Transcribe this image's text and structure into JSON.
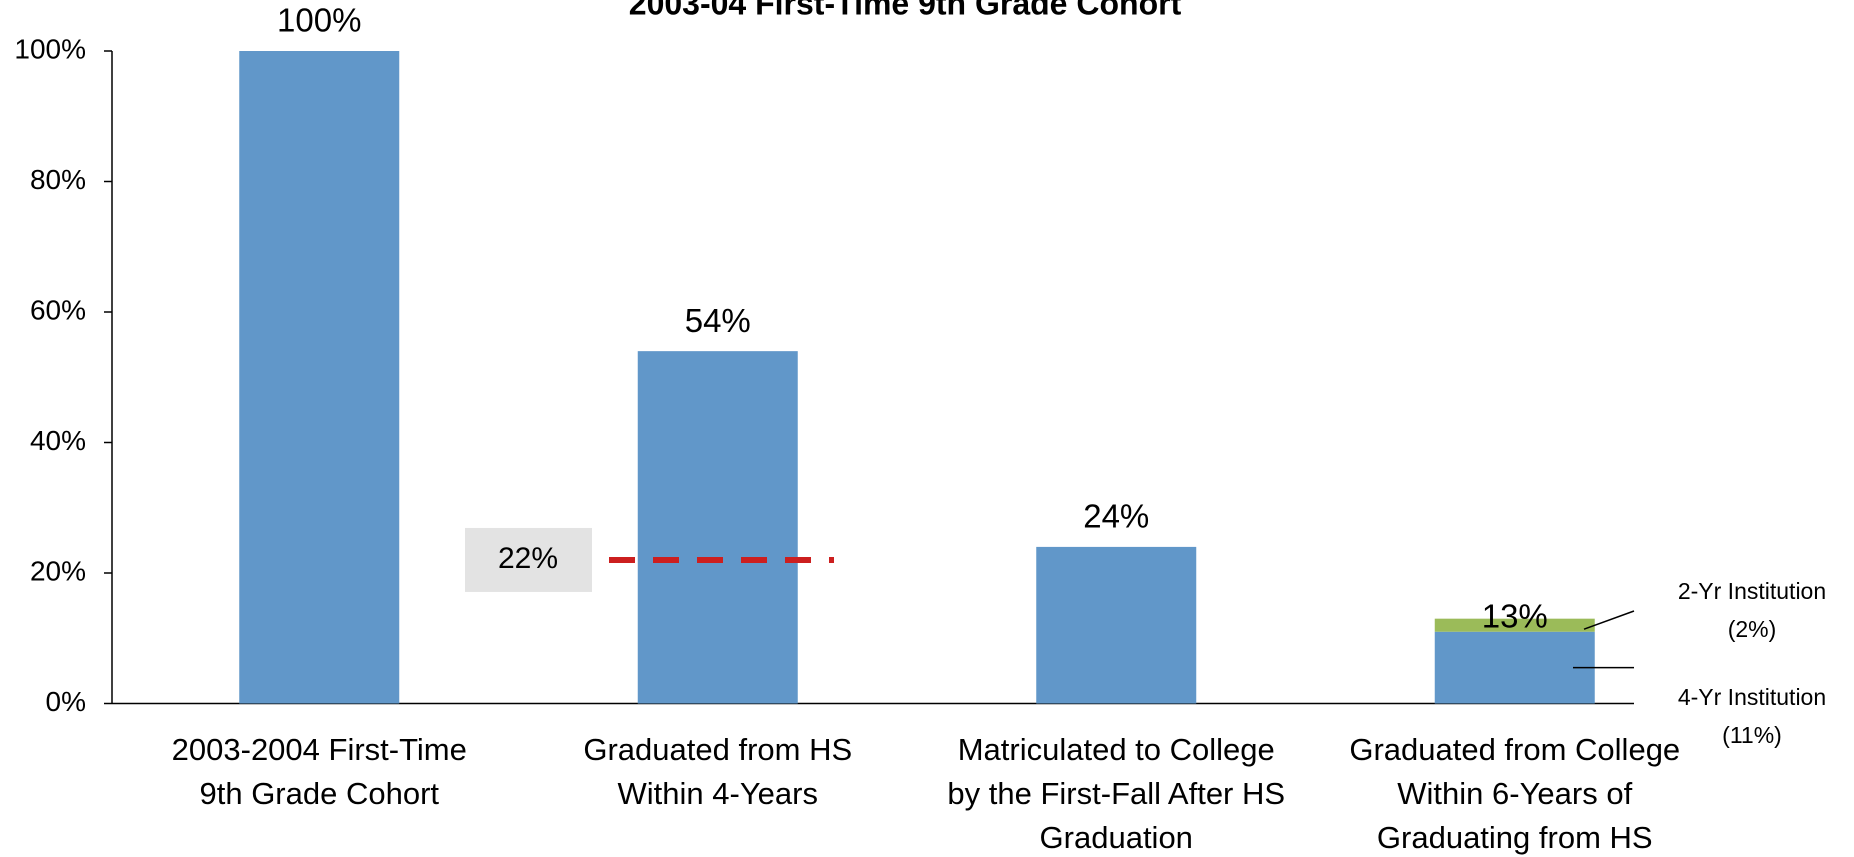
{
  "chart_data": {
    "type": "bar",
    "title": "2003-04 First-Time 9th Grade Cohort",
    "categories": [
      [
        "2003-2004 First-Time",
        "9th Grade Cohort"
      ],
      [
        "Graduated from HS",
        "Within 4-Years"
      ],
      [
        "Matriculated to College",
        "by the First-Fall After HS",
        "Graduation"
      ],
      [
        "Graduated from College",
        "Within 6-Years of",
        "Graduating from HS"
      ]
    ],
    "series": [
      {
        "name": "4-Yr Institution",
        "share_label": "(11%)",
        "color": "#6197c9",
        "values": [
          100,
          54,
          24,
          11
        ]
      },
      {
        "name": "2-Yr Institution",
        "share_label": "(2%)",
        "color": "#9bbb59",
        "values": [
          null,
          null,
          null,
          2
        ]
      }
    ],
    "totals": [
      100,
      54,
      24,
      13
    ],
    "total_labels": [
      "100%",
      "54%",
      "24%",
      "13%"
    ],
    "reference": {
      "value": 22,
      "label": "22%",
      "color": "#cc1f1f"
    },
    "ylim": [
      0,
      100
    ],
    "yticks": [
      {
        "value": 0,
        "label": "0%"
      },
      {
        "value": 20,
        "label": "20%"
      },
      {
        "value": 40,
        "label": "40%"
      },
      {
        "value": 60,
        "label": "60%"
      },
      {
        "value": 80,
        "label": "80%"
      },
      {
        "value": 100,
        "label": "100%"
      }
    ],
    "grid": false
  }
}
